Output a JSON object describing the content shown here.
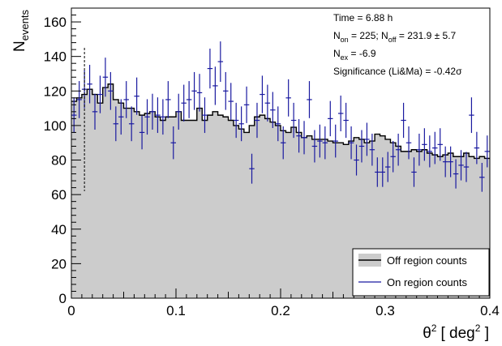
{
  "chart_data": {
    "type": "bar",
    "xlabel_sym": "θ",
    "xlabel_sup": "2",
    "xlabel_unit_pre": "[ deg",
    "xlabel_unit_sup": "2",
    "xlabel_unit_post": " ]",
    "ylabel_main": "N",
    "ylabel_sub": "events",
    "xlim": [
      0,
      0.4
    ],
    "ylim": [
      0,
      168
    ],
    "x_ticks": [
      0,
      0.1,
      0.2,
      0.3,
      0.4
    ],
    "x_tick_labels": [
      "0",
      "0.1",
      "0.2",
      "0.3",
      "0.4"
    ],
    "y_ticks": [
      0,
      20,
      40,
      60,
      80,
      100,
      120,
      140,
      160
    ],
    "y_tick_labels": [
      "0",
      "20",
      "40",
      "60",
      "80",
      "100",
      "120",
      "140",
      "160"
    ],
    "bin_width": 0.005,
    "cut_line_x": 0.0125,
    "cut_line_top": 145,
    "stats": {
      "time": "Time = 6.88 h",
      "on_pre": "N",
      "on_sub": "on",
      "on_mid": " = 225; N",
      "off_sub": "off",
      "off_post": " = 231.9 ±  5.7",
      "ex_pre": "N",
      "ex_sub": "ex",
      "ex_post": " = -6.9",
      "significance": "Significance (Li&Ma) = -0.42σ"
    },
    "series": [
      {
        "name": "Off region counts",
        "color": "#000000",
        "fill": "#cccccc",
        "values": [
          114,
          116,
          118,
          121,
          118,
          113,
          122,
          124,
          115,
          113,
          110,
          110,
          108,
          106,
          107,
          108,
          105,
          103,
          105,
          105,
          108,
          103,
          103,
          103,
          110,
          103,
          106,
          108,
          106,
          105,
          103,
          100,
          98,
          96,
          100,
          105,
          106,
          104,
          102,
          100,
          97,
          96,
          99,
          96,
          93,
          94,
          92,
          92,
          92,
          91,
          90,
          90,
          89,
          91,
          93,
          92,
          90,
          91,
          95,
          94,
          92,
          90,
          88,
          85,
          85,
          86,
          85,
          86,
          84,
          83,
          82,
          83,
          84,
          82,
          82,
          84,
          82,
          81,
          82,
          81,
          80
        ]
      },
      {
        "name": "On region counts",
        "color": "#1a1aa0",
        "values": [
          106,
          115,
          121,
          124,
          108,
          118,
          128,
          120,
          101,
          105,
          115,
          101,
          117,
          96,
          105,
          108,
          106,
          105,
          115,
          90,
          108,
          113,
          115,
          120,
          119,
          106,
          133,
          123,
          137,
          120,
          114,
          103,
          101,
          112,
          75,
          103,
          118,
          113,
          109,
          101,
          90,
          116,
          103,
          94,
          93,
          115,
          88,
          91,
          90,
          104,
          91,
          107,
          103,
          90,
          80,
          88,
          92,
          86,
          73,
          73,
          76,
          82,
          86,
          103,
          90,
          73,
          86,
          89,
          85,
          87,
          89,
          79,
          79,
          72,
          77,
          76,
          106,
          87,
          70,
          85,
          83
        ]
      }
    ],
    "legend_placement": "bottom-right",
    "grid": false
  }
}
